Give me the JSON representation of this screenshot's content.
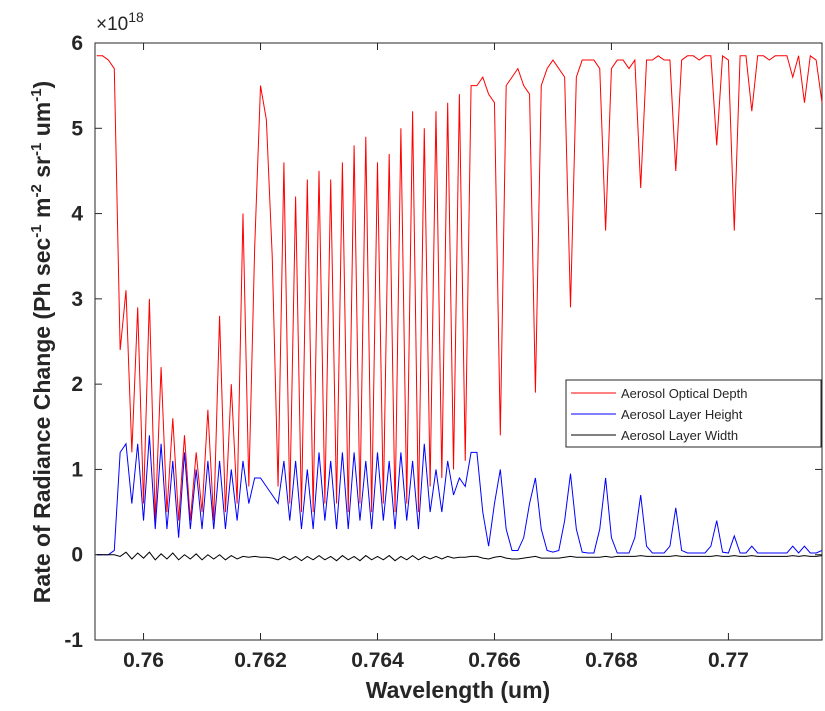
{
  "chart_data": {
    "type": "line",
    "xlabel": "Wavelength (um)",
    "ylabel_parts": [
      {
        "text": "Rate of Radiance Change (Ph sec"
      },
      {
        "text": "-1",
        "sup": true
      },
      {
        "text": " m"
      },
      {
        "text": "-2",
        "sup": true
      },
      {
        "text": " sr"
      },
      {
        "text": "-1",
        "sup": true
      },
      {
        "text": " um"
      },
      {
        "text": "-1",
        "sup": true
      },
      {
        "text": ")"
      }
    ],
    "y_multiplier": {
      "base": "×10",
      "exponent": "18"
    },
    "xlim": [
      0.75917,
      0.7716
    ],
    "ylim": [
      -1,
      6
    ],
    "xticks": [
      0.76,
      0.762,
      0.764,
      0.766,
      0.768,
      0.77
    ],
    "yticks": [
      -1,
      0,
      1,
      2,
      3,
      4,
      5,
      6
    ],
    "legend": "east",
    "x": [
      0.7592,
      0.7593,
      0.7594,
      0.7595,
      0.7596,
      0.7597,
      0.7598,
      0.7599,
      0.76,
      0.7601,
      0.7602,
      0.7603,
      0.7604,
      0.7605,
      0.7606,
      0.7607,
      0.7608,
      0.7609,
      0.761,
      0.7611,
      0.7612,
      0.7613,
      0.7614,
      0.7615,
      0.7616,
      0.7617,
      0.7618,
      0.7619,
      0.762,
      0.7621,
      0.7622,
      0.7623,
      0.7624,
      0.7625,
      0.7626,
      0.7627,
      0.7628,
      0.7629,
      0.763,
      0.7631,
      0.7632,
      0.7633,
      0.7634,
      0.7635,
      0.7636,
      0.7637,
      0.7638,
      0.7639,
      0.764,
      0.7641,
      0.7642,
      0.7643,
      0.7644,
      0.7645,
      0.7646,
      0.7647,
      0.7648,
      0.7649,
      0.765,
      0.7651,
      0.7652,
      0.7653,
      0.7654,
      0.7655,
      0.7656,
      0.7657,
      0.7658,
      0.7659,
      0.766,
      0.7661,
      0.7662,
      0.7663,
      0.7664,
      0.7665,
      0.7666,
      0.7667,
      0.7668,
      0.7669,
      0.767,
      0.7671,
      0.7672,
      0.7673,
      0.7674,
      0.7675,
      0.7676,
      0.7677,
      0.7678,
      0.7679,
      0.768,
      0.7681,
      0.7682,
      0.7683,
      0.7684,
      0.7685,
      0.7686,
      0.7687,
      0.7688,
      0.7689,
      0.769,
      0.7691,
      0.7692,
      0.7693,
      0.7694,
      0.7695,
      0.7696,
      0.7697,
      0.7698,
      0.7699,
      0.77,
      0.7701,
      0.7702,
      0.7703,
      0.7704,
      0.7705,
      0.7706,
      0.7707,
      0.7708,
      0.7709,
      0.771,
      0.7711,
      0.7712,
      0.7713,
      0.7714,
      0.7715,
      0.7716
    ],
    "series": [
      {
        "name": "Aerosol Optical Depth",
        "color": "#ff0000",
        "values": [
          5.85,
          5.85,
          5.8,
          5.7,
          2.4,
          3.1,
          1.2,
          2.9,
          0.6,
          3.0,
          0.4,
          2.2,
          0.5,
          1.6,
          0.4,
          1.4,
          0.4,
          1.2,
          0.5,
          1.7,
          0.4,
          2.8,
          0.5,
          2.0,
          0.6,
          4.0,
          0.8,
          3.6,
          5.5,
          5.1,
          3.5,
          0.8,
          4.6,
          0.6,
          4.2,
          0.5,
          4.4,
          0.5,
          4.5,
          0.6,
          4.4,
          0.6,
          4.6,
          0.5,
          4.8,
          0.6,
          4.9,
          0.5,
          4.6,
          0.6,
          4.7,
          0.5,
          5.0,
          0.6,
          5.2,
          0.5,
          5.0,
          0.8,
          5.2,
          0.9,
          5.3,
          1.0,
          5.4,
          1.1,
          5.5,
          5.5,
          5.6,
          5.4,
          5.3,
          1.4,
          5.5,
          5.6,
          5.7,
          5.5,
          5.4,
          1.9,
          5.5,
          5.7,
          5.8,
          5.7,
          5.6,
          2.9,
          5.6,
          5.8,
          5.8,
          5.8,
          5.7,
          3.8,
          5.7,
          5.8,
          5.8,
          5.7,
          5.8,
          4.3,
          5.8,
          5.8,
          5.85,
          5.8,
          5.8,
          4.5,
          5.8,
          5.85,
          5.85,
          5.8,
          5.85,
          5.85,
          4.8,
          5.85,
          5.8,
          3.8,
          5.85,
          5.85,
          5.2,
          5.85,
          5.85,
          5.8,
          5.85,
          5.85,
          5.85,
          5.6,
          5.85,
          5.3,
          5.85,
          5.8,
          5.3
        ]
      },
      {
        "name": "Aerosol Layer Height",
        "color": "#0000ff",
        "values": [
          0,
          0,
          0,
          0.05,
          1.2,
          1.3,
          0.6,
          1.3,
          0.4,
          1.4,
          0.3,
          1.3,
          0.3,
          1.1,
          0.2,
          1.2,
          0.3,
          1.0,
          0.3,
          1.1,
          0.3,
          1.1,
          0.3,
          1.0,
          0.4,
          1.1,
          0.6,
          0.9,
          0.9,
          0.8,
          0.7,
          0.6,
          1.1,
          0.4,
          1.1,
          0.3,
          1.0,
          0.3,
          1.2,
          0.4,
          1.1,
          0.3,
          1.2,
          0.3,
          1.2,
          0.4,
          1.1,
          0.3,
          1.2,
          0.4,
          1.1,
          0.3,
          1.2,
          0.4,
          1.1,
          0.3,
          1.3,
          0.5,
          1.0,
          0.5,
          1.1,
          0.7,
          0.9,
          0.8,
          1.2,
          1.2,
          0.5,
          0.1,
          0.6,
          1.0,
          0.3,
          0.05,
          0.05,
          0.2,
          0.6,
          0.9,
          0.3,
          0.05,
          0.03,
          0.05,
          0.4,
          0.95,
          0.3,
          0.03,
          0.02,
          0.02,
          0.3,
          0.9,
          0.2,
          0.02,
          0.02,
          0.02,
          0.2,
          0.7,
          0.1,
          0.02,
          0.02,
          0.02,
          0.1,
          0.55,
          0.05,
          0.02,
          0.02,
          0.02,
          0.02,
          0.1,
          0.4,
          0.03,
          0.02,
          0.22,
          0.02,
          0.02,
          0.1,
          0.02,
          0.02,
          0.02,
          0.02,
          0.02,
          0.02,
          0.1,
          0.02,
          0.1,
          0.02,
          0.02,
          0.05
        ]
      },
      {
        "name": "Aerosol Layer Width",
        "color": "#000000",
        "values": [
          0,
          0,
          0,
          0,
          -0.02,
          0.03,
          -0.05,
          0.02,
          -0.04,
          0.03,
          -0.06,
          0.01,
          -0.05,
          0.02,
          -0.06,
          0,
          -0.05,
          0.01,
          -0.06,
          0,
          -0.05,
          0,
          -0.06,
          -0.01,
          -0.05,
          -0.02,
          -0.03,
          -0.02,
          -0.03,
          -0.03,
          -0.04,
          -0.06,
          -0.02,
          -0.06,
          -0.02,
          -0.07,
          -0.02,
          -0.06,
          -0.01,
          -0.06,
          -0.02,
          -0.07,
          -0.01,
          -0.06,
          -0.02,
          -0.07,
          -0.01,
          -0.06,
          -0.02,
          -0.06,
          -0.01,
          -0.07,
          -0.02,
          -0.06,
          -0.01,
          -0.06,
          -0.02,
          -0.05,
          -0.02,
          -0.05,
          -0.02,
          -0.04,
          -0.03,
          -0.03,
          -0.02,
          -0.02,
          -0.04,
          -0.05,
          -0.03,
          -0.02,
          -0.04,
          -0.05,
          -0.05,
          -0.04,
          -0.03,
          -0.02,
          -0.04,
          -0.04,
          -0.04,
          -0.04,
          -0.03,
          -0.02,
          -0.03,
          -0.03,
          -0.03,
          -0.03,
          -0.03,
          -0.02,
          -0.03,
          -0.02,
          -0.02,
          -0.02,
          -0.02,
          -0.01,
          -0.02,
          -0.02,
          -0.02,
          -0.02,
          -0.02,
          -0.01,
          -0.02,
          -0.02,
          -0.02,
          -0.02,
          -0.02,
          -0.02,
          -0.01,
          -0.02,
          -0.02,
          -0.01,
          -0.02,
          -0.02,
          -0.01,
          -0.02,
          -0.02,
          -0.02,
          -0.02,
          -0.02,
          -0.02,
          -0.01,
          -0.02,
          -0.01,
          -0.02,
          -0.02,
          -0.01
        ]
      }
    ]
  }
}
